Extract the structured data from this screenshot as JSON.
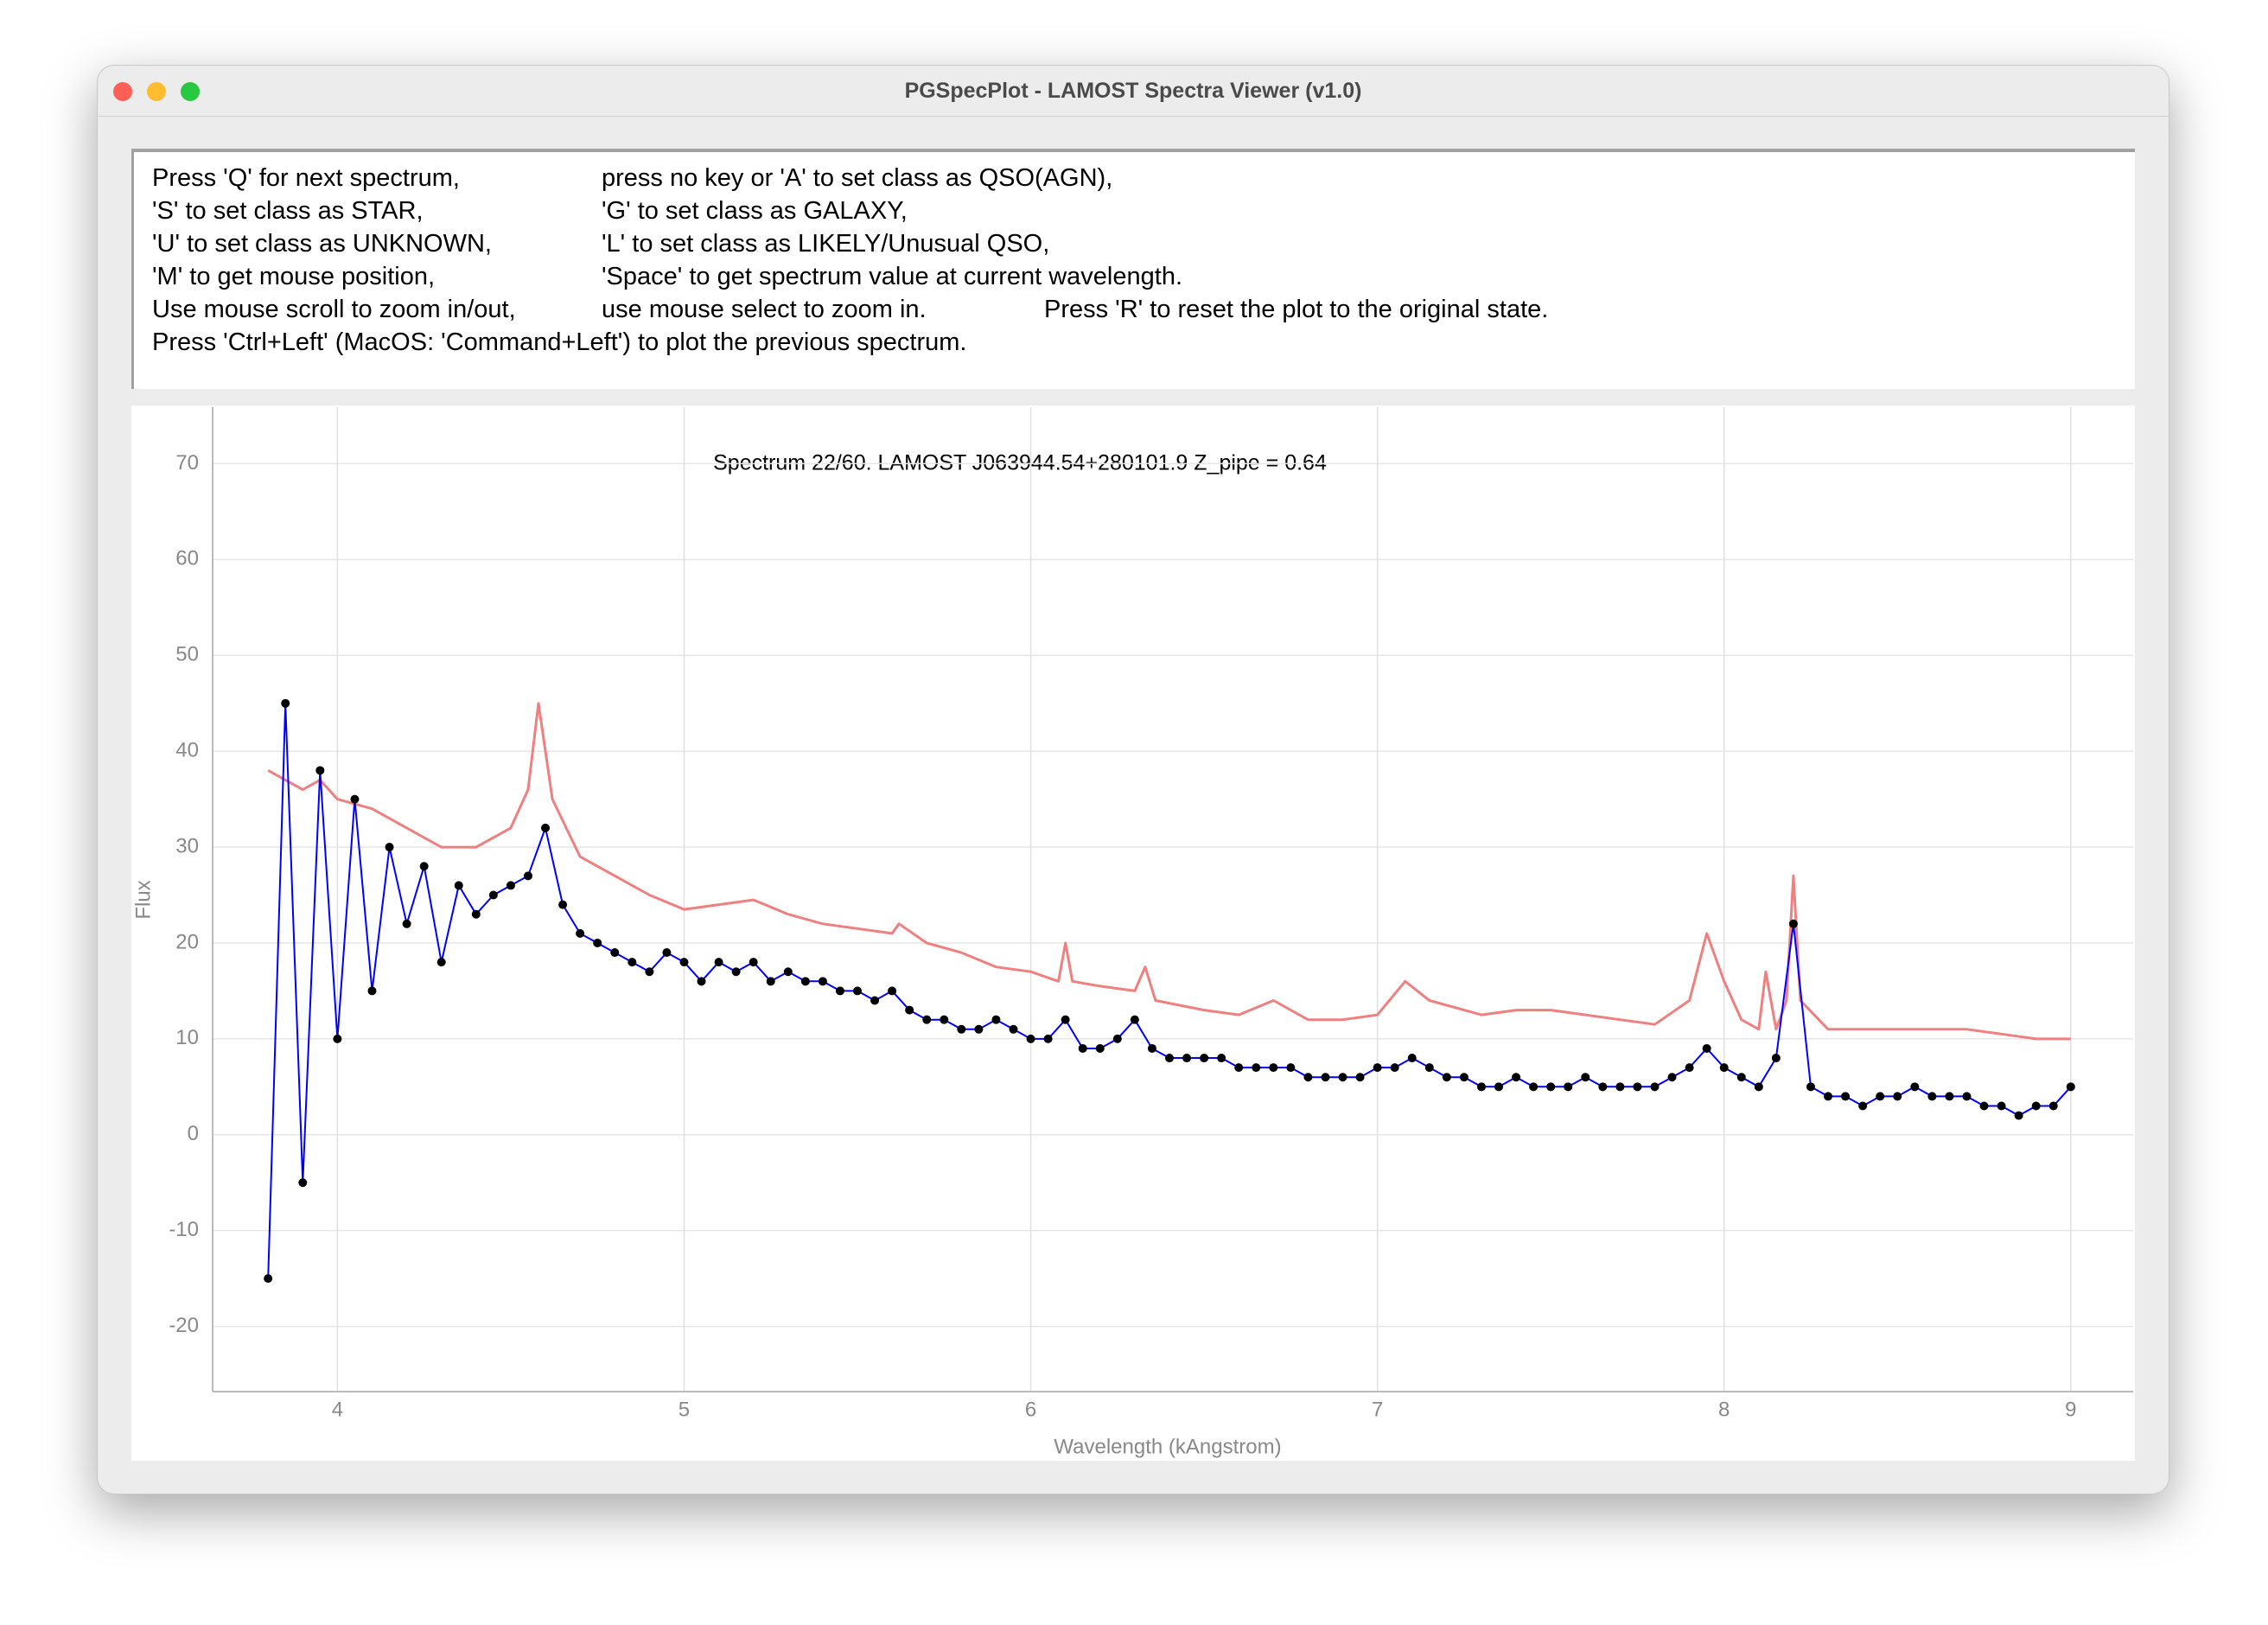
{
  "window": {
    "title": "PGSpecPlot - LAMOST Spectra Viewer (v1.0)"
  },
  "instructions": [
    [
      "Press 'Q' for next spectrum,",
      "press no key or 'A' to set class as QSO(AGN),"
    ],
    [
      "'S' to set class as STAR,",
      "'G' to set class as GALAXY,"
    ],
    [
      "'U' to set class as UNKNOWN,",
      "'L' to set class as LIKELY/Unusual QSO,"
    ],
    [
      "'M' to get mouse position,",
      "'Space' to get spectrum value at current wavelength."
    ],
    [
      "Use mouse scroll to zoom in/out,",
      "use mouse select to zoom in.",
      "Press 'R' to reset the plot to the original state."
    ],
    [
      "Press 'Ctrl+Left' (MacOS: 'Command+Left') to plot the previous spectrum."
    ]
  ],
  "chart_data": {
    "type": "line",
    "title": "Spectrum 22/60.  LAMOST J063944.54+280101.9  Z_pipe = 0.64",
    "x_label": "Wavelength (kAngstrom)",
    "y_label": "Flux",
    "xlim": [
      3.64,
      9.18
    ],
    "ylim": [
      -26.8,
      75.9
    ],
    "xticks": [
      4,
      5,
      6,
      7,
      8,
      9
    ],
    "yticks": [
      -20,
      -10,
      0,
      10,
      20,
      30,
      40,
      50,
      60,
      70
    ],
    "grid": true,
    "series": [
      {
        "color": "#f08080",
        "markers": false,
        "x": [
          3.8,
          3.85,
          3.9,
          3.95,
          4.0,
          4.1,
          4.2,
          4.3,
          4.4,
          4.5,
          4.55,
          4.58,
          4.62,
          4.7,
          4.8,
          4.9,
          5.0,
          5.1,
          5.2,
          5.3,
          5.4,
          5.5,
          5.6,
          5.62,
          5.7,
          5.8,
          5.9,
          6.0,
          6.08,
          6.1,
          6.12,
          6.2,
          6.3,
          6.33,
          6.36,
          6.5,
          6.6,
          6.7,
          6.8,
          6.9,
          7.0,
          7.08,
          7.15,
          7.3,
          7.4,
          7.5,
          7.6,
          7.7,
          7.8,
          7.9,
          7.95,
          8.0,
          8.05,
          8.1,
          8.12,
          8.15,
          8.18,
          8.2,
          8.22,
          8.3,
          8.4,
          8.5,
          8.6,
          8.7,
          8.8,
          8.9,
          9.0
        ],
        "values": [
          38,
          37,
          36,
          37,
          35,
          34,
          32,
          30,
          30,
          32,
          36,
          45,
          35,
          29,
          27,
          25,
          23.5,
          24,
          24.5,
          23,
          22,
          21.5,
          21,
          22,
          20,
          19,
          17.5,
          17,
          16,
          20,
          16,
          15.5,
          15,
          17.5,
          14,
          13,
          12.5,
          14,
          12,
          12,
          12.5,
          16,
          14,
          12.5,
          13,
          13,
          12.5,
          12,
          11.5,
          14,
          21,
          16,
          12,
          11,
          17,
          11,
          14,
          27,
          14,
          11,
          11,
          11,
          11,
          11,
          10.5,
          10,
          10
        ]
      },
      {
        "color": "#0000ff",
        "marker_color": "#000000",
        "markers": true,
        "x": [
          3.8,
          3.85,
          3.9,
          3.95,
          4.0,
          4.05,
          4.1,
          4.15,
          4.2,
          4.25,
          4.3,
          4.35,
          4.4,
          4.45,
          4.5,
          4.55,
          4.6,
          4.65,
          4.7,
          4.75,
          4.8,
          4.85,
          4.9,
          4.95,
          5.0,
          5.05,
          5.1,
          5.15,
          5.2,
          5.25,
          5.3,
          5.35,
          5.4,
          5.45,
          5.5,
          5.55,
          5.6,
          5.65,
          5.7,
          5.75,
          5.8,
          5.85,
          5.9,
          5.95,
          6.0,
          6.05,
          6.1,
          6.15,
          6.2,
          6.25,
          6.3,
          6.35,
          6.4,
          6.45,
          6.5,
          6.55,
          6.6,
          6.65,
          6.7,
          6.75,
          6.8,
          6.85,
          6.9,
          6.95,
          7.0,
          7.05,
          7.1,
          7.15,
          7.2,
          7.25,
          7.3,
          7.35,
          7.4,
          7.45,
          7.5,
          7.55,
          7.6,
          7.65,
          7.7,
          7.75,
          7.8,
          7.85,
          7.9,
          7.95,
          8.0,
          8.05,
          8.1,
          8.15,
          8.2,
          8.25,
          8.3,
          8.35,
          8.4,
          8.45,
          8.5,
          8.55,
          8.6,
          8.65,
          8.7,
          8.75,
          8.8,
          8.85,
          8.9,
          8.95,
          9.0
        ],
        "values": [
          -15,
          45,
          -5,
          38,
          10,
          35,
          15,
          30,
          22,
          28,
          18,
          26,
          23,
          25,
          26,
          27,
          32,
          24,
          21,
          20,
          19,
          18,
          17,
          19,
          18,
          16,
          18,
          17,
          18,
          16,
          17,
          16,
          16,
          15,
          15,
          14,
          15,
          13,
          12,
          12,
          11,
          11,
          12,
          11,
          10,
          10,
          12,
          9,
          9,
          10,
          12,
          9,
          8,
          8,
          8,
          8,
          7,
          7,
          7,
          7,
          6,
          6,
          6,
          6,
          7,
          7,
          8,
          7,
          6,
          6,
          5,
          5,
          6,
          5,
          5,
          5,
          6,
          5,
          5,
          5,
          5,
          6,
          7,
          9,
          7,
          6,
          5,
          8,
          22,
          5,
          4,
          4,
          3,
          4,
          4,
          5,
          4,
          4,
          4,
          3,
          3,
          2,
          3,
          3,
          5
        ]
      }
    ]
  }
}
